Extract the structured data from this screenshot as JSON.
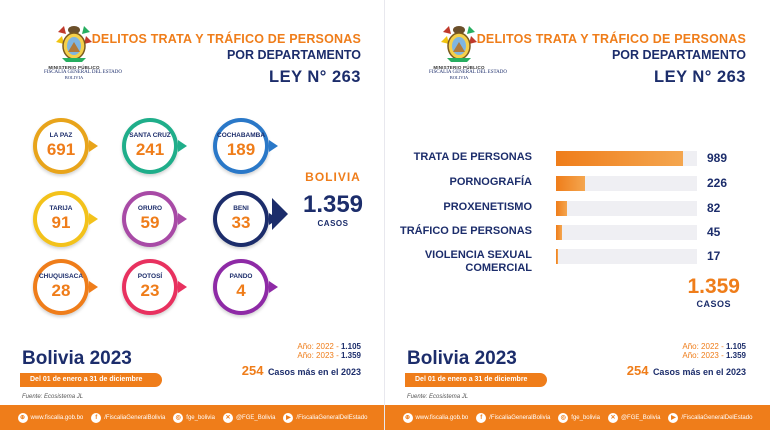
{
  "header": {
    "line1": "DELITOS TRATA Y TRÁFICO DE PERSONAS",
    "line2": "POR DEPARTAMENTO",
    "law": "LEY N° 263"
  },
  "emblem": {
    "line1": "MINISTERIO PÚBLICO",
    "line2": "FISCALÍA GENERAL DEL ESTADO",
    "line3": "BOLIVIA"
  },
  "departments": [
    {
      "name": "LA PAZ",
      "value": "691",
      "color": "#e8a41b"
    },
    {
      "name": "SANTA CRUZ",
      "value": "241",
      "color": "#1fae8a"
    },
    {
      "name": "COCHABAMBA",
      "value": "189",
      "color": "#2a78c8"
    },
    {
      "name": "TARIJA",
      "value": "91",
      "color": "#f3c21b"
    },
    {
      "name": "ORURO",
      "value": "59",
      "color": "#a84aa6"
    },
    {
      "name": "BENI",
      "value": "33",
      "color": "#1c2d6b"
    },
    {
      "name": "CHUQUISACA",
      "value": "28",
      "color": "#ef7d1a"
    },
    {
      "name": "POTOSÍ",
      "value": "23",
      "color": "#e8315f"
    },
    {
      "name": "PANDO",
      "value": "4",
      "color": "#8e2aa6"
    }
  ],
  "bolivia": {
    "title": "BOLIVIA",
    "total": "1.359",
    "unit": "CASOS"
  },
  "footer_info": {
    "title": "Bolivia 2023",
    "dates": "Del 01 de enero a 31 de diciembre",
    "source": "Fuente: Ecosistema JL",
    "y2022_label": "Año: 2022 - ",
    "y2022_value": "1.105",
    "y2023_label": "Año: 2023 - ",
    "y2023_value": "1.359",
    "diff_value": "254",
    "diff_text": "Casos más en el 2023"
  },
  "social": [
    {
      "icon": "globe-icon",
      "glyph": "⊕",
      "label": "www.fiscalia.gob.bo"
    },
    {
      "icon": "facebook-icon",
      "glyph": "f",
      "label": "/FiscaliaGeneralBolivia"
    },
    {
      "icon": "instagram-icon",
      "glyph": "◎",
      "label": "fge_bolivia"
    },
    {
      "icon": "x-icon",
      "glyph": "✕",
      "label": "@FGE_Bolivia"
    },
    {
      "icon": "youtube-icon",
      "glyph": "▶",
      "label": "/FiscaliaGeneralDelEstado"
    }
  ],
  "chart_data": {
    "type": "bar",
    "orientation": "horizontal",
    "categories": [
      "TRATA DE PERSONAS",
      "PORNOGRAFÍA",
      "PROXENETISMO",
      "TRÁFICO DE PERSONAS",
      "VIOLENCIA SEXUAL COMERCIAL"
    ],
    "values": [
      989,
      226,
      82,
      45,
      17
    ],
    "value_labels": [
      "989",
      "226",
      "82",
      "45",
      "17"
    ],
    "xlim": [
      0,
      1100
    ],
    "total": "1.359",
    "total_unit": "CASOS"
  },
  "colors": {
    "accent": "#ef7d1a",
    "navy": "#1c2d6b"
  }
}
